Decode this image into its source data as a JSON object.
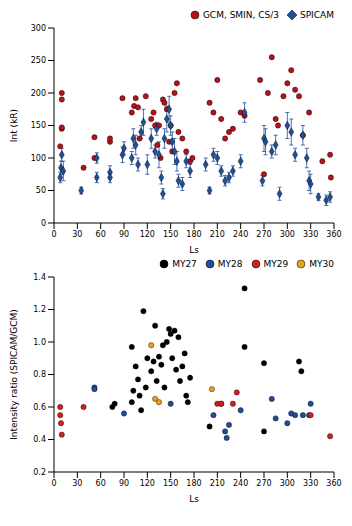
{
  "chart_data": [
    {
      "type": "scatter",
      "x_label": "Ls",
      "y_label": "Int (kR)",
      "xlim": [
        0,
        360
      ],
      "xticks": [
        0,
        30,
        60,
        90,
        120,
        150,
        180,
        210,
        240,
        270,
        300,
        330,
        360
      ],
      "ylim": [
        0,
        300
      ],
      "yticks": [
        0,
        50,
        100,
        150,
        200,
        250,
        300
      ],
      "legend": "upper right",
      "series": [
        {
          "name": "GCM, SMIN, CS/3",
          "color": "#b5121b",
          "marker": "circle",
          "x": [
            8,
            10,
            10,
            10,
            10,
            38,
            52,
            52,
            72,
            72,
            88,
            100,
            103,
            105,
            108,
            110,
            118,
            125,
            128,
            130,
            133,
            135,
            137,
            140,
            142,
            145,
            148,
            150,
            152,
            155,
            158,
            160,
            165,
            170,
            175,
            178,
            200,
            205,
            210,
            215,
            220,
            225,
            230,
            240,
            245,
            265,
            270,
            275,
            280,
            285,
            288,
            295,
            300,
            305,
            310,
            315,
            320,
            328,
            345,
            355,
            356
          ],
          "values": [
            118,
            145,
            147,
            190,
            200,
            85,
            100,
            132,
            125,
            130,
            192,
            170,
            180,
            192,
            178,
            130,
            195,
            160,
            170,
            150,
            120,
            150,
            100,
            190,
            185,
            175,
            125,
            150,
            110,
            200,
            215,
            140,
            130,
            110,
            95,
            100,
            185,
            170,
            220,
            160,
            130,
            140,
            145,
            170,
            165,
            220,
            75,
            200,
            255,
            160,
            150,
            195,
            215,
            235,
            205,
            195,
            135,
            170,
            95,
            105,
            70
          ]
        },
        {
          "name": "SPICAM",
          "color": "#1f4e9c",
          "marker": "diamond",
          "x": [
            8,
            9,
            10,
            12,
            35,
            55,
            55,
            72,
            72,
            88,
            90,
            100,
            102,
            105,
            108,
            112,
            115,
            120,
            125,
            130,
            132,
            135,
            138,
            140,
            142,
            145,
            148,
            150,
            152,
            155,
            158,
            160,
            165,
            170,
            175,
            195,
            200,
            205,
            210,
            215,
            220,
            225,
            230,
            240,
            245,
            268,
            270,
            272,
            280,
            285,
            290,
            300,
            305,
            310,
            320,
            325,
            328,
            330,
            340,
            350,
            355
          ],
          "values": [
            70,
            85,
            105,
            80,
            50,
            70,
            100,
            78,
            70,
            105,
            115,
            100,
            130,
            120,
            90,
            140,
            155,
            90,
            130,
            110,
            145,
            105,
            70,
            45,
            130,
            160,
            175,
            150,
            125,
            110,
            95,
            65,
            60,
            95,
            80,
            90,
            50,
            105,
            100,
            80,
            65,
            70,
            80,
            95,
            170,
            65,
            130,
            125,
            110,
            120,
            45,
            150,
            140,
            105,
            135,
            100,
            65,
            60,
            40,
            35,
            40
          ],
          "errors": [
            8,
            10,
            10,
            15,
            5,
            8,
            8,
            10,
            8,
            12,
            10,
            10,
            15,
            15,
            10,
            10,
            20,
            15,
            15,
            10,
            10,
            20,
            10,
            8,
            15,
            20,
            20,
            15,
            15,
            20,
            15,
            10,
            10,
            10,
            10,
            10,
            5,
            10,
            10,
            8,
            8,
            8,
            8,
            10,
            15,
            8,
            20,
            20,
            10,
            15,
            10,
            20,
            20,
            10,
            15,
            15,
            15,
            15,
            5,
            8,
            8
          ]
        }
      ]
    },
    {
      "type": "scatter",
      "x_label": "Ls",
      "y_label": "Intensity ratio (SPICAM/GCM)",
      "xlim": [
        0,
        360
      ],
      "xticks": [
        0,
        30,
        60,
        90,
        120,
        150,
        180,
        210,
        240,
        270,
        300,
        330,
        360
      ],
      "ylim": [
        0.2,
        1.4
      ],
      "yticks": [
        0.2,
        0.4,
        0.6,
        0.8,
        {
          "value": 1,
          "label": "1.0"
        },
        1.2,
        1.4
      ],
      "legend": "upper right",
      "series": [
        {
          "name": "MY27",
          "color": "#000000",
          "marker": "circle",
          "x": [
            75,
            78,
            100,
            100,
            102,
            105,
            108,
            110,
            112,
            115,
            118,
            120,
            125,
            128,
            130,
            132,
            135,
            138,
            140,
            142,
            145,
            148,
            150,
            152,
            155,
            157,
            160,
            162,
            165,
            168,
            170,
            172,
            175,
            200,
            245,
            245,
            270,
            270,
            315,
            318
          ],
          "values": [
            0.6,
            0.62,
            0.63,
            0.97,
            0.7,
            0.85,
            0.77,
            0.67,
            0.58,
            1.19,
            0.72,
            0.9,
            0.82,
            0.88,
            1.1,
            0.76,
            0.91,
            0.86,
            0.98,
            0.72,
            1.0,
            1.08,
            1.05,
            0.9,
            1.07,
            0.83,
            1.03,
            0.76,
            0.85,
            0.93,
            0.67,
            0.63,
            0.78,
            0.48,
            1.33,
            0.97,
            0.87,
            0.45,
            0.88,
            0.82
          ]
        },
        {
          "name": "MY28",
          "color": "#1f4e9c",
          "marker": "circle",
          "x": [
            52,
            52,
            90,
            150,
            205,
            215,
            220,
            222,
            225,
            240,
            280,
            285,
            300,
            305,
            310,
            320,
            328,
            330
          ],
          "values": [
            0.72,
            0.71,
            0.56,
            0.62,
            0.55,
            0.62,
            0.45,
            0.41,
            0.49,
            0.58,
            0.65,
            0.53,
            0.5,
            0.56,
            0.55,
            0.55,
            0.55,
            0.62
          ]
        },
        {
          "name": "MY29",
          "color": "#d0211f",
          "marker": "circle",
          "x": [
            8,
            8,
            9,
            10,
            38,
            210,
            215,
            230,
            235,
            330,
            355
          ],
          "values": [
            0.6,
            0.55,
            0.5,
            0.43,
            0.6,
            0.62,
            0.62,
            0.62,
            0.69,
            0.55,
            0.42
          ]
        },
        {
          "name": "MY30",
          "color": "#e8a21c",
          "marker": "circle",
          "x": [
            125,
            130,
            135,
            203
          ],
          "values": [
            0.98,
            0.65,
            0.63,
            0.71
          ]
        }
      ]
    }
  ]
}
